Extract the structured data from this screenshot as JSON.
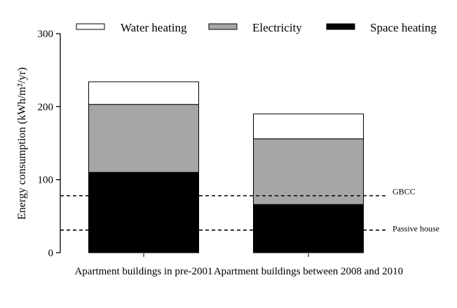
{
  "chart_data": {
    "type": "bar",
    "stacked": true,
    "title": "",
    "xlabel": "",
    "ylabel": "Energy consumption (kWh/m²/yr)",
    "ylim": [
      0,
      300
    ],
    "yticks": [
      0,
      100,
      200,
      300
    ],
    "grid": false,
    "legend_position": "top",
    "categories": [
      "Apartment buildings in pre-2001",
      "Apartment buildings between 2008 and 2010"
    ],
    "series": [
      {
        "name": "Space heating",
        "color": "#000000",
        "values": [
          110,
          66
        ]
      },
      {
        "name": "Electricity",
        "color": "#a6a6a6",
        "values": [
          93,
          90
        ]
      },
      {
        "name": "Water heating",
        "color": "#ffffff",
        "values": [
          31,
          34
        ]
      }
    ],
    "legend_order": [
      "Water heating",
      "Electricity",
      "Space heating"
    ],
    "reference_lines": [
      {
        "label": "GBCC",
        "value": 78,
        "style": "dashed"
      },
      {
        "label": "Passive house",
        "value": 31,
        "style": "dashed"
      }
    ]
  }
}
